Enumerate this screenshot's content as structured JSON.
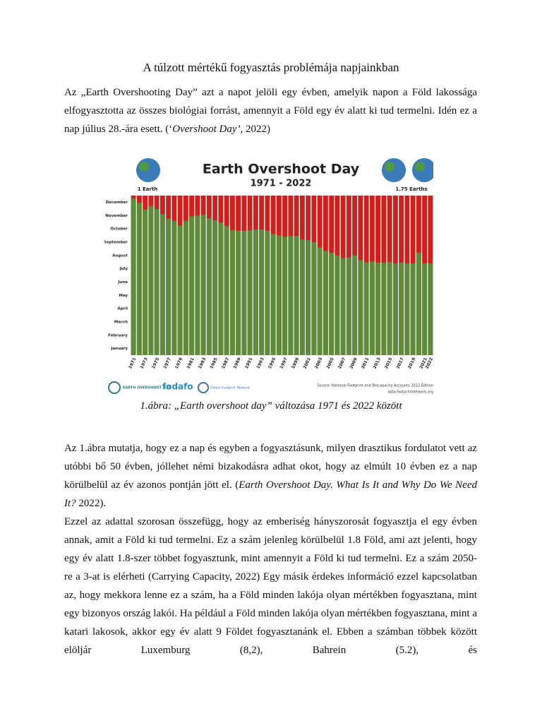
{
  "document": {
    "title": "A túlzott mértékű fogyasztás problémája napjainkban",
    "paragraphs": [
      {
        "runs": [
          {
            "text": "Az „Earth Overshooting Day” azt a napot jelöli egy évben, amelyik napon a Föld lakossága elfogyasztotta az összes biológiai forrást, amennyit a Föld egy év alatt ki tud termelni. Idén ez a nap július 28.-ára esett. (‘"
          },
          {
            "text": "Overshoot Day’",
            "italic": true
          },
          {
            "text": ", 2022)"
          }
        ]
      },
      {
        "runs": [
          {
            "text": "Az 1.ábra mutatja, hogy ez a nap és egyben a fogyasztásunk, milyen drasztikus fordulatot vett az utóbbi bő 50 évben, jóllehet némi bizakodásra adhat okot, hogy az elmúlt 10 évben ez a nap körülbelül az év azonos pontján jött el. ("
          },
          {
            "text": "Earth Overshoot Day. What Is It and Why Do We Need It?",
            "italic": true
          },
          {
            "text": " 2022)."
          }
        ]
      },
      {
        "runs": [
          {
            "text": "Ezzel az adattal szorosan összefügg, hogy az emberiség hányszorosát fogyasztja el egy évben annak, amit a Föld ki tud termelni. Ez a szám jelenleg körülbelül 1.8 Föld, ami azt jelenti, hogy egy év alatt 1.8-szer többet fogyasztunk, mint amennyit a Föld ki tud termelni. Ez a szám 2050-re a 3-at  is elérheti (Carrying Capacity, 2022) Egy másik érdekes információ ezzel kapcsolatban az, hogy mekkora lenne ez a szám, ha a Föld minden lakója olyan mértékben fogyasztana, mint egy bizonyos ország lakói. Ha például a Föld minden lakója olyan mértékben fogyasztana, mint a katari lakosok, akkor egy év alatt 9 Földet fogyasztanánk el. Ebben a számban többek között elöljár Luxemburg (8,2), Bahrein (5.2), és"
          }
        ]
      }
    ],
    "caption": "1.ábra: „Earth overshoot day” változása 1971 és 2022 között"
  },
  "chart_data": {
    "type": "bar",
    "title": "Earth Overshoot Day",
    "subtitle": "1971 - 2022",
    "annotations": [
      "1 Earth",
      "1.75 Earths"
    ],
    "source": [
      "Source: National Footprint and Biocapacity Accounts 2022 Edition",
      "data.footprintnetwork.org"
    ],
    "logos": [
      "EARTH OVERSHOOT DAY",
      "fodafo",
      "Global Footprint Network"
    ],
    "categories": [
      "1971",
      null,
      "1973",
      null,
      "1975",
      null,
      "1977",
      null,
      "1979",
      null,
      "1981",
      null,
      "1983",
      null,
      "1985",
      null,
      "1987",
      null,
      "1989",
      null,
      "1991",
      null,
      "1993",
      null,
      "1995",
      null,
      "1997",
      null,
      "1999",
      null,
      "2001",
      null,
      "2003",
      null,
      "2005",
      null,
      "2007",
      null,
      "2009",
      null,
      "2011",
      null,
      "2013",
      null,
      "2015",
      null,
      "2017",
      null,
      "2019",
      null,
      "2021",
      "2022"
    ],
    "values": [
      11.8,
      11.45,
      10.95,
      11.2,
      11.0,
      10.6,
      10.25,
      10.1,
      9.75,
      10.1,
      10.45,
      10.5,
      10.55,
      10.3,
      10.15,
      9.97,
      9.7,
      9.4,
      9.35,
      9.35,
      9.4,
      9.45,
      9.45,
      9.35,
      9.1,
      9.0,
      8.9,
      8.95,
      8.97,
      8.7,
      8.65,
      8.5,
      8.1,
      7.85,
      7.7,
      7.5,
      7.3,
      7.35,
      7.5,
      7.15,
      6.97,
      7.05,
      6.95,
      6.95,
      7.0,
      6.9,
      6.97,
      6.9,
      6.9,
      7.7,
      6.9,
      6.9
    ],
    "color": "#5b8b3b",
    "background_color": "#c9221f",
    "ylim": [
      0,
      12
    ],
    "yticks": [
      {
        "value": 0.5,
        "label": "January"
      },
      {
        "value": 1.5,
        "label": "February"
      },
      {
        "value": 2.5,
        "label": "March"
      },
      {
        "value": 3.5,
        "label": "April"
      },
      {
        "value": 4.5,
        "label": "May"
      },
      {
        "value": 5.5,
        "label": "June"
      },
      {
        "value": 6.5,
        "label": "July"
      },
      {
        "value": 7.5,
        "label": "August"
      },
      {
        "value": 8.5,
        "label": "September"
      },
      {
        "value": 9.5,
        "label": "October"
      },
      {
        "value": 10.5,
        "label": "November"
      },
      {
        "value": 11.5,
        "label": "December"
      }
    ],
    "grid": false
  }
}
